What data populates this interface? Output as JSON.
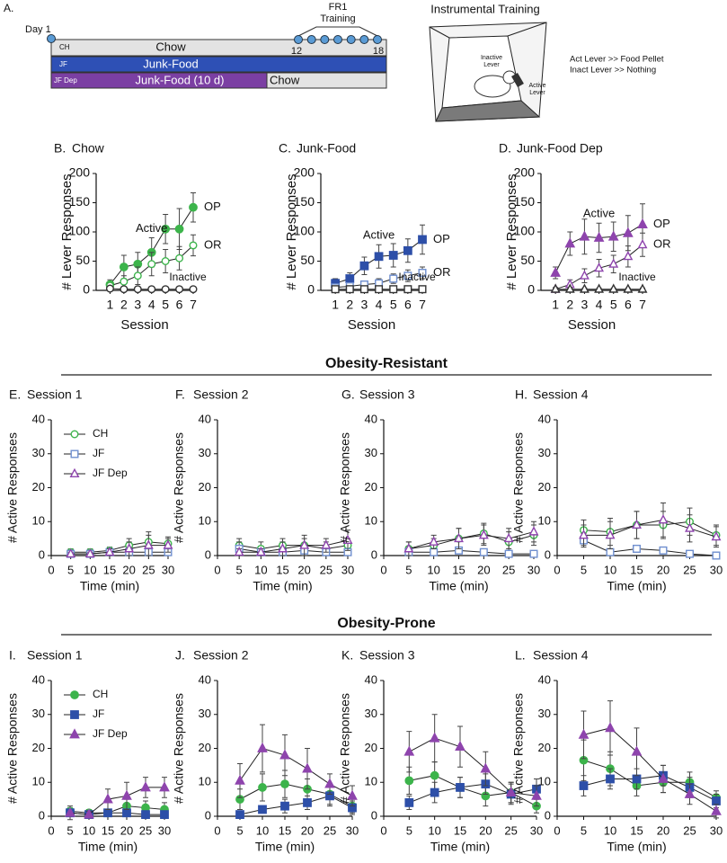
{
  "diagram": {
    "label": "A.",
    "day1": "Day 1",
    "fr1": "FR1",
    "training": "Training",
    "start": 12,
    "end": 18,
    "rows": [
      {
        "tag": "CH",
        "label": "Chow"
      },
      {
        "tag": "JF",
        "label": "Junk-Food"
      },
      {
        "tag": "JF Dep",
        "label": "Junk-Food (10 d)",
        "label2": "Chow"
      }
    ],
    "instrumental": "Instrumental Training",
    "inactive_lever": [
      "Inactive",
      "Lever"
    ],
    "active_lever": [
      "Active",
      "Lever"
    ],
    "rules": [
      "Act Lever >> Food Pellet",
      "Inact Lever >> Nothing"
    ]
  },
  "section_titles": [
    "Obesity-Resistant",
    "Obesity-Prone"
  ],
  "chart_data": [
    {
      "type": "line",
      "panel": "B.",
      "title": "Chow",
      "x_label": "Session",
      "y_label": "# Lever Responses",
      "x": [
        1,
        2,
        3,
        4,
        5,
        6,
        7
      ],
      "xlim": [
        0,
        7
      ],
      "xticks": [
        1,
        2,
        3,
        4,
        5,
        6,
        7
      ],
      "ylim": [
        0,
        200
      ],
      "yticks": [
        0,
        50,
        100,
        150,
        200
      ],
      "annotations": {
        "active": "Active",
        "inactive": "Inactive",
        "op": "OP",
        "or": "OR"
      },
      "series": [
        {
          "color": "#3cb44b",
          "marker": "circle",
          "filled": true,
          "values": [
            10,
            40,
            45,
            65,
            105,
            105,
            142
          ],
          "errors": [
            8,
            20,
            20,
            25,
            25,
            35,
            25
          ]
        },
        {
          "color": "#3cb44b",
          "marker": "circle",
          "filled": false,
          "values": [
            8,
            15,
            25,
            45,
            50,
            55,
            77
          ],
          "errors": [
            5,
            10,
            15,
            20,
            20,
            20,
            18
          ]
        },
        {
          "color": "#333333",
          "marker": "circle",
          "filled": false,
          "values": [
            3,
            2,
            2,
            2,
            2,
            2,
            2
          ],
          "errors": [
            2,
            2,
            2,
            2,
            2,
            2,
            2
          ]
        }
      ]
    },
    {
      "type": "line",
      "panel": "C.",
      "title": "Junk-Food",
      "x_label": "Session",
      "y_label": "# Lever Responses",
      "x": [
        1,
        2,
        3,
        4,
        5,
        6,
        7
      ],
      "xlim": [
        0,
        7
      ],
      "xticks": [
        1,
        2,
        3,
        4,
        5,
        6,
        7
      ],
      "ylim": [
        0,
        200
      ],
      "yticks": [
        0,
        50,
        100,
        150,
        200
      ],
      "annotations": {
        "active": "Active",
        "inactive": "Inactive",
        "op": "OP",
        "or": "OR"
      },
      "series": [
        {
          "color": "#2d4fa8",
          "marker": "square",
          "filled": true,
          "values": [
            12,
            20,
            42,
            58,
            60,
            68,
            87
          ],
          "errors": [
            8,
            10,
            15,
            20,
            20,
            20,
            25
          ]
        },
        {
          "color": "#6f8fcf",
          "marker": "square",
          "filled": false,
          "values": [
            5,
            7,
            10,
            12,
            20,
            25,
            30
          ],
          "errors": [
            5,
            5,
            5,
            8,
            8,
            10,
            10
          ]
        },
        {
          "color": "#333333",
          "marker": "square",
          "filled": false,
          "values": [
            2,
            2,
            2,
            2,
            2,
            2,
            2
          ],
          "errors": [
            2,
            2,
            2,
            2,
            2,
            2,
            2
          ]
        }
      ]
    },
    {
      "type": "line",
      "panel": "D.",
      "title": "Junk-Food Dep",
      "x_label": "Session",
      "y_label": "# Lever Responses",
      "x": [
        1,
        2,
        3,
        4,
        5,
        6,
        7
      ],
      "xlim": [
        0,
        7
      ],
      "xticks": [
        1,
        2,
        3,
        4,
        5,
        6,
        7
      ],
      "ylim": [
        0,
        200
      ],
      "yticks": [
        0,
        50,
        100,
        150,
        200
      ],
      "annotations": {
        "active": "Active",
        "inactive": "Inactive",
        "op": "OP",
        "or": "OR"
      },
      "series": [
        {
          "color": "#8e44ad",
          "marker": "triangle",
          "filled": true,
          "values": [
            30,
            80,
            92,
            90,
            92,
            98,
            113
          ],
          "errors": [
            10,
            20,
            30,
            25,
            25,
            30,
            35
          ]
        },
        {
          "color": "#8e44ad",
          "marker": "triangle",
          "filled": false,
          "values": [
            2,
            10,
            25,
            38,
            45,
            58,
            78
          ],
          "errors": [
            3,
            8,
            12,
            15,
            15,
            18,
            20
          ]
        },
        {
          "color": "#333333",
          "marker": "triangle",
          "filled": false,
          "values": [
            2,
            2,
            2,
            2,
            2,
            2,
            2
          ],
          "errors": [
            2,
            2,
            2,
            2,
            2,
            2,
            2
          ]
        }
      ]
    },
    {
      "type": "line",
      "panel": "E.",
      "title": "Session 1",
      "x_label": "Time (min)",
      "y_label": "# Active Responses",
      "x": [
        5,
        10,
        15,
        20,
        25,
        30
      ],
      "xlim": [
        0,
        30
      ],
      "xticks": [
        0,
        5,
        10,
        15,
        20,
        25,
        30
      ],
      "ylim": [
        0,
        40
      ],
      "yticks": [
        0,
        10,
        20,
        30,
        40
      ],
      "series": [
        {
          "name": "CH",
          "color": "#3cb44b",
          "marker": "circle",
          "filled": false,
          "values": [
            1,
            1,
            1.5,
            3,
            4,
            3.5
          ],
          "errors": [
            1,
            1,
            1,
            2,
            3,
            2
          ]
        },
        {
          "name": "JF",
          "color": "#6f8fcf",
          "marker": "square",
          "filled": false,
          "values": [
            0.5,
            0.5,
            1,
            1,
            1,
            1
          ],
          "errors": [
            0.5,
            0.5,
            1,
            1,
            1,
            1
          ]
        },
        {
          "name": "JF Dep",
          "color": "#8e44ad",
          "marker": "triangle",
          "filled": false,
          "values": [
            0.5,
            0.5,
            1,
            2,
            3,
            3
          ],
          "errors": [
            0.5,
            0.5,
            1,
            2,
            3,
            2
          ]
        }
      ]
    },
    {
      "type": "line",
      "panel": "F.",
      "title": "Session 2",
      "x_label": "Time (min)",
      "y_label": "# Active Responses",
      "x": [
        5,
        10,
        15,
        20,
        25,
        30
      ],
      "xlim": [
        0,
        30
      ],
      "xticks": [
        0,
        5,
        10,
        15,
        20,
        25,
        30
      ],
      "ylim": [
        0,
        40
      ],
      "yticks": [
        0,
        10,
        20,
        30,
        40
      ],
      "series": [
        {
          "color": "#3cb44b",
          "marker": "circle",
          "filled": false,
          "values": [
            3,
            2,
            3,
            3,
            2,
            3
          ],
          "errors": [
            2,
            2,
            2,
            2,
            2,
            2
          ]
        },
        {
          "color": "#6f8fcf",
          "marker": "square",
          "filled": false,
          "values": [
            2,
            1,
            1,
            1.5,
            1,
            1
          ],
          "errors": [
            2,
            1,
            1,
            1.5,
            1,
            1
          ]
        },
        {
          "color": "#8e44ad",
          "marker": "triangle",
          "filled": false,
          "values": [
            1,
            1,
            2,
            3,
            3,
            4.5
          ],
          "errors": [
            1,
            1,
            2,
            3,
            2,
            3
          ]
        }
      ]
    },
    {
      "type": "line",
      "panel": "G.",
      "title": "Session 3",
      "x_label": "Time (min)",
      "y_label": "# Active Responses",
      "x": [
        5,
        10,
        15,
        20,
        25,
        30
      ],
      "xlim": [
        0,
        30
      ],
      "xticks": [
        0,
        5,
        10,
        15,
        20,
        25,
        30
      ],
      "ylim": [
        0,
        40
      ],
      "yticks": [
        0,
        10,
        20,
        30,
        40
      ],
      "series": [
        {
          "color": "#3cb44b",
          "marker": "circle",
          "filled": false,
          "values": [
            2,
            3,
            5,
            6.5,
            4,
            6
          ],
          "errors": [
            2,
            2,
            3,
            3,
            3,
            3
          ]
        },
        {
          "color": "#6f8fcf",
          "marker": "square",
          "filled": false,
          "values": [
            1,
            1,
            1.5,
            1,
            0.5,
            0.5
          ],
          "errors": [
            1,
            1,
            1,
            1,
            0.5,
            0.5
          ]
        },
        {
          "color": "#8e44ad",
          "marker": "triangle",
          "filled": false,
          "values": [
            2,
            4,
            5,
            6,
            5,
            7
          ],
          "errors": [
            2,
            2,
            3,
            3,
            3,
            3
          ]
        }
      ]
    },
    {
      "type": "line",
      "panel": "H.",
      "title": "Session 4",
      "x_label": "Time (min)",
      "y_label": "# Active Responses",
      "x": [
        5,
        10,
        15,
        20,
        25,
        30
      ],
      "xlim": [
        0,
        30
      ],
      "xticks": [
        0,
        5,
        10,
        15,
        20,
        25,
        30
      ],
      "ylim": [
        0,
        40
      ],
      "yticks": [
        0,
        10,
        20,
        30,
        40
      ],
      "series": [
        {
          "color": "#3cb44b",
          "marker": "circle",
          "filled": false,
          "values": [
            7.5,
            7,
            9,
            9,
            10,
            6
          ],
          "errors": [
            3,
            4,
            4,
            4,
            4,
            3
          ]
        },
        {
          "color": "#6f8fcf",
          "marker": "square",
          "filled": false,
          "values": [
            4.5,
            1,
            2,
            1.5,
            0.5,
            0
          ],
          "errors": [
            2,
            1,
            1,
            1,
            0.5,
            0.5
          ]
        },
        {
          "color": "#8e44ad",
          "marker": "triangle",
          "filled": false,
          "values": [
            6,
            6,
            9,
            10.5,
            8,
            5.5
          ],
          "errors": [
            3,
            4,
            4,
            5,
            4,
            3
          ]
        }
      ]
    },
    {
      "type": "line",
      "panel": "I.",
      "title": "Session 1",
      "x_label": "Time (min)",
      "y_label": "# Active Responses",
      "x": [
        5,
        10,
        15,
        20,
        25,
        30
      ],
      "xlim": [
        0,
        30
      ],
      "xticks": [
        0,
        5,
        10,
        15,
        20,
        25,
        30
      ],
      "ylim": [
        0,
        40
      ],
      "yticks": [
        0,
        10,
        20,
        30,
        40
      ],
      "series": [
        {
          "name": "CH",
          "color": "#3cb44b",
          "marker": "circle",
          "filled": true,
          "values": [
            1.5,
            1,
            1,
            3,
            2.5,
            2
          ],
          "errors": [
            1,
            1,
            1,
            2,
            2,
            2
          ]
        },
        {
          "name": "JF",
          "color": "#2d4fa8",
          "marker": "square",
          "filled": true,
          "values": [
            1,
            0.5,
            1,
            1,
            0.5,
            0.5
          ],
          "errors": [
            1,
            0.5,
            1,
            1,
            0.5,
            0.5
          ]
        },
        {
          "name": "JF Dep",
          "color": "#8e44ad",
          "marker": "triangle",
          "filled": true,
          "values": [
            1,
            0.5,
            5,
            6,
            8.5,
            8.5
          ],
          "errors": [
            2,
            1,
            3,
            4,
            3,
            3
          ]
        }
      ]
    },
    {
      "type": "line",
      "panel": "J.",
      "title": "Session 2",
      "x_label": "Time (min)",
      "y_label": "# Active Responses",
      "x": [
        5,
        10,
        15,
        20,
        25,
        30
      ],
      "xlim": [
        0,
        30
      ],
      "xticks": [
        0,
        5,
        10,
        15,
        20,
        25,
        30
      ],
      "ylim": [
        0,
        40
      ],
      "yticks": [
        0,
        10,
        20,
        30,
        40
      ],
      "series": [
        {
          "color": "#3cb44b",
          "marker": "circle",
          "filled": true,
          "values": [
            5,
            8.5,
            9.5,
            8,
            6.5,
            3
          ],
          "errors": [
            3,
            4,
            4,
            3,
            3,
            2
          ]
        },
        {
          "color": "#2d4fa8",
          "marker": "square",
          "filled": true,
          "values": [
            0.5,
            2,
            3,
            4,
            6,
            2.5
          ],
          "errors": [
            0.5,
            1,
            2,
            2,
            3,
            2
          ]
        },
        {
          "color": "#8e44ad",
          "marker": "triangle",
          "filled": true,
          "values": [
            10.5,
            20,
            18,
            14,
            9.5,
            6
          ],
          "errors": [
            5,
            7,
            6,
            6,
            3,
            3
          ]
        }
      ]
    },
    {
      "type": "line",
      "panel": "K.",
      "title": "Session 3",
      "x_label": "Time (min)",
      "y_label": "# Active Responses",
      "x": [
        5,
        10,
        15,
        20,
        25,
        30
      ],
      "xlim": [
        0,
        30
      ],
      "xticks": [
        0,
        5,
        10,
        15,
        20,
        25,
        30
      ],
      "ylim": [
        0,
        40
      ],
      "yticks": [
        0,
        10,
        20,
        30,
        40
      ],
      "series": [
        {
          "color": "#3cb44b",
          "marker": "circle",
          "filled": true,
          "values": [
            10.5,
            12,
            8.5,
            6,
            7,
            3
          ],
          "errors": [
            4,
            4,
            3,
            3,
            3,
            2
          ]
        },
        {
          "color": "#2d4fa8",
          "marker": "square",
          "filled": true,
          "values": [
            4,
            7,
            8.5,
            9.5,
            6.5,
            8
          ],
          "errors": [
            2,
            3,
            3,
            3,
            3,
            3
          ]
        },
        {
          "color": "#8e44ad",
          "marker": "triangle",
          "filled": true,
          "values": [
            19,
            23,
            20.5,
            14,
            7,
            6
          ],
          "errors": [
            6,
            7,
            6,
            5,
            3,
            3
          ]
        }
      ]
    },
    {
      "type": "line",
      "panel": "L.",
      "title": "Session 4",
      "x_label": "Time (min)",
      "y_label": "# Active Responses",
      "x": [
        5,
        10,
        15,
        20,
        25,
        30
      ],
      "xlim": [
        0,
        30
      ],
      "xticks": [
        0,
        5,
        10,
        15,
        20,
        25,
        30
      ],
      "ylim": [
        0,
        40
      ],
      "yticks": [
        0,
        10,
        20,
        30,
        40
      ],
      "series": [
        {
          "color": "#3cb44b",
          "marker": "circle",
          "filled": true,
          "values": [
            16.5,
            14,
            9,
            10,
            10,
            5.5
          ],
          "errors": [
            6,
            5,
            3,
            3,
            3,
            2
          ]
        },
        {
          "color": "#2d4fa8",
          "marker": "square",
          "filled": true,
          "values": [
            9,
            11,
            11,
            12,
            8.5,
            4.5
          ],
          "errors": [
            3,
            3,
            3,
            3,
            3,
            2
          ]
        },
        {
          "color": "#8e44ad",
          "marker": "triangle",
          "filled": true,
          "values": [
            24,
            26,
            19,
            11,
            6.5,
            1.5
          ],
          "errors": [
            7,
            8,
            7,
            4,
            3,
            2
          ]
        }
      ]
    }
  ]
}
